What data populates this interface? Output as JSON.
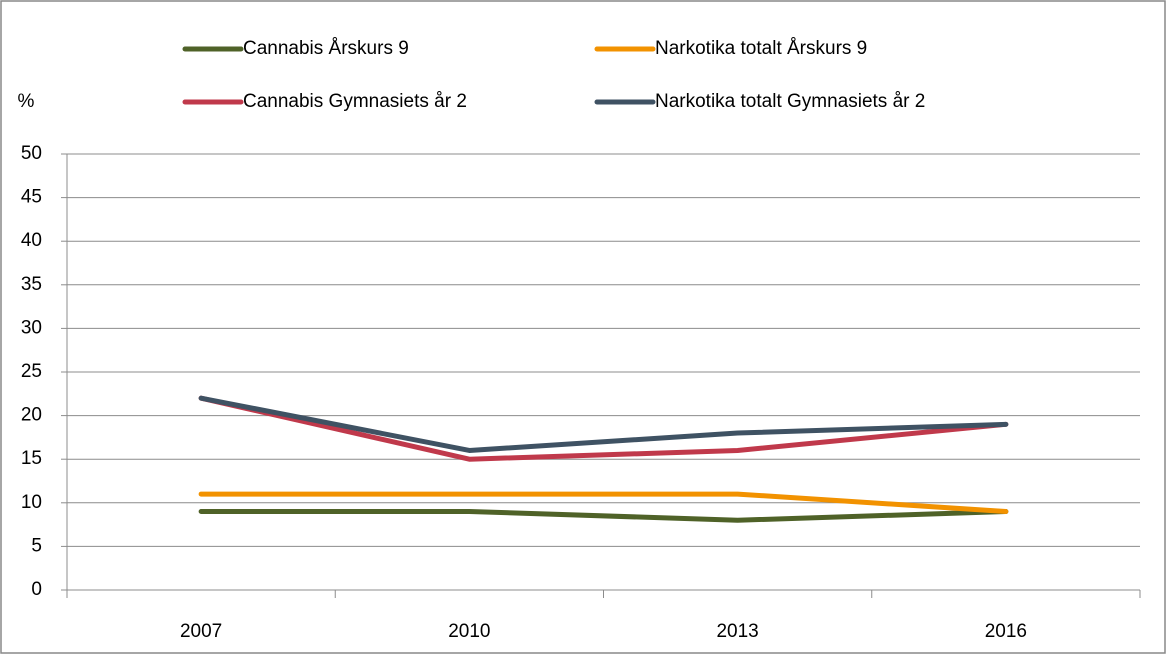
{
  "chart_data": {
    "type": "line",
    "y_label": "%",
    "categories": [
      "2007",
      "2010",
      "2013",
      "2016"
    ],
    "series": [
      {
        "name": "Cannabis Årskurs 9",
        "color": "#4f6228",
        "values": [
          9,
          9,
          8,
          9
        ]
      },
      {
        "name": "Narkotika totalt Årskurs 9",
        "color": "#f29200",
        "values": [
          11,
          11,
          11,
          9
        ]
      },
      {
        "name": "Cannabis Gymnasiets år 2",
        "color": "#c0394b",
        "values": [
          22,
          15,
          16,
          19
        ]
      },
      {
        "name": "Narkotika totalt Gymnasiets år 2",
        "color": "#3f5263",
        "values": [
          22,
          16,
          18,
          19
        ]
      }
    ],
    "ylim": [
      0,
      50
    ],
    "yticks": [
      0,
      5,
      10,
      15,
      20,
      25,
      30,
      35,
      40,
      45,
      50
    ],
    "grid": true
  }
}
